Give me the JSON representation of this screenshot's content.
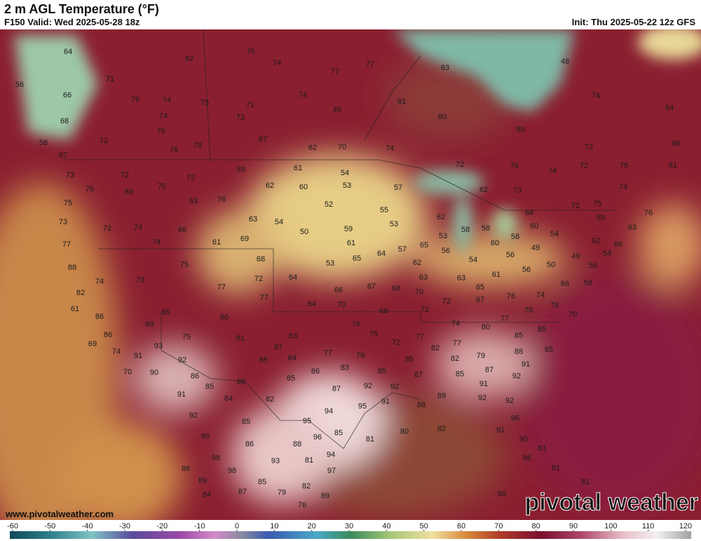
{
  "header": {
    "title": "2 m AGL Temperature (°F)",
    "valid": "F150 Valid: Wed 2025-05-28 18z",
    "init": "Init: Thu 2025-05-22 12z GFS"
  },
  "footer": {
    "website": "www.pivotalweather.com",
    "watermark": "pivotal weather"
  },
  "colorbar": {
    "ticks": [
      -60,
      -50,
      -40,
      -30,
      -20,
      -10,
      0,
      10,
      20,
      30,
      40,
      50,
      60,
      70,
      80,
      90,
      100,
      110,
      120
    ]
  },
  "station_values": [
    64,
    82,
    75,
    74,
    77,
    77,
    83,
    56,
    71,
    66,
    76,
    74,
    75,
    71,
    74,
    81,
    45,
    68,
    74,
    73,
    80,
    48,
    74,
    64,
    86,
    75,
    72,
    58,
    67,
    78,
    76,
    62,
    70,
    74,
    72,
    68,
    67,
    61,
    54,
    69,
    72,
    76,
    74,
    72,
    75,
    61,
    73,
    72,
    72,
    70,
    69,
    76,
    62,
    60,
    53,
    57,
    62,
    73,
    74,
    75,
    63,
    76,
    52,
    55,
    64,
    72,
    75,
    76,
    73,
    72,
    74,
    66,
    54,
    63,
    50,
    59,
    53,
    62,
    58,
    58,
    60,
    54,
    59,
    63,
    77,
    74,
    61,
    69,
    61,
    53,
    58,
    60,
    49,
    62,
    66,
    54,
    88,
    75,
    68,
    53,
    65,
    64,
    57,
    65,
    56,
    54,
    56,
    50,
    49,
    56,
    82,
    74,
    73,
    77,
    72,
    64,
    66,
    67,
    68,
    62,
    63,
    70,
    63,
    61,
    65,
    56,
    66,
    58,
    61,
    86,
    80,
    77,
    64,
    70,
    69,
    72,
    72,
    67,
    76,
    74,
    78,
    78,
    70,
    86,
    88,
    86,
    75,
    81,
    83,
    76,
    75,
    72,
    77,
    74,
    80,
    77,
    85,
    85,
    69,
    74,
    93,
    87,
    77,
    79,
    82,
    77,
    79,
    88,
    85,
    91,
    92,
    85,
    84,
    86,
    83,
    85,
    82,
    87,
    91,
    70,
    90,
    86,
    86,
    85,
    85,
    87,
    85,
    92,
    85,
    91,
    91,
    84,
    82,
    87,
    92,
    92,
    91,
    88,
    89,
    92,
    92,
    92,
    94,
    95,
    96,
    85,
    95,
    80,
    82,
    91,
    95,
    86,
    96,
    85,
    81,
    88,
    90,
    83,
    98,
    93,
    81,
    94,
    86,
    98,
    97,
    86,
    81,
    89,
    85,
    82,
    81,
    84,
    87,
    79,
    89,
    76,
    86
  ]
}
